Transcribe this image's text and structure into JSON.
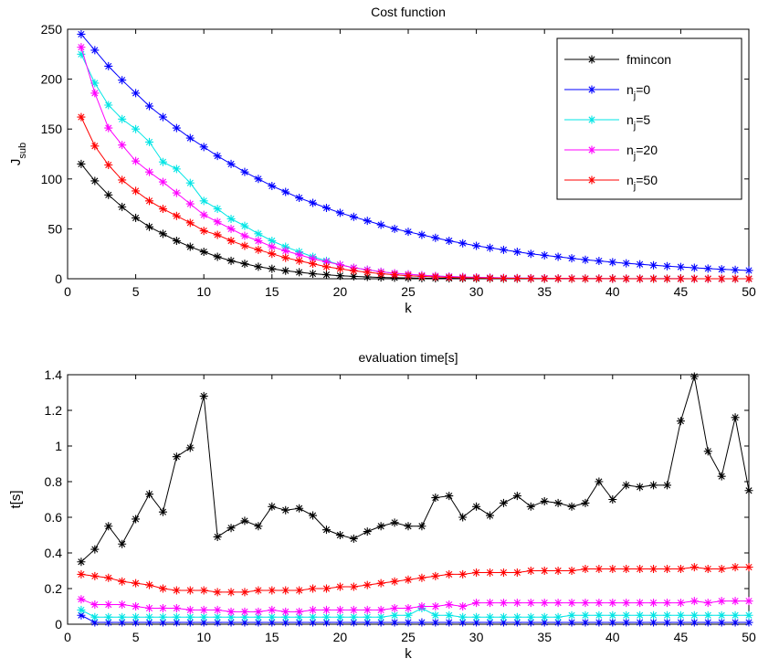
{
  "chart_data": [
    {
      "type": "line",
      "title": "Cost function",
      "xlabel": "k",
      "ylabel": "J",
      "ylabel_sub": "sub",
      "xlim": [
        0,
        50
      ],
      "ylim": [
        0,
        250
      ],
      "xticks": [
        0,
        5,
        10,
        15,
        20,
        25,
        30,
        35,
        40,
        45,
        50
      ],
      "yticks": [
        0,
        50,
        100,
        150,
        200,
        250
      ],
      "legend_position": "top-right",
      "x": [
        1,
        2,
        3,
        4,
        5,
        6,
        7,
        8,
        9,
        10,
        11,
        12,
        13,
        14,
        15,
        16,
        17,
        18,
        19,
        20,
        21,
        22,
        23,
        24,
        25,
        26,
        27,
        28,
        29,
        30,
        31,
        32,
        33,
        34,
        35,
        36,
        37,
        38,
        39,
        40,
        41,
        42,
        43,
        44,
        45,
        46,
        47,
        48,
        49,
        50
      ],
      "series": [
        {
          "name": "fmincon",
          "legend": {
            "base": "fmincon",
            "sub": "",
            "sup": ""
          },
          "color": "#000000",
          "values": [
            115,
            98,
            84,
            72,
            61,
            52,
            45,
            38,
            32,
            27,
            22,
            18,
            15,
            12,
            10,
            8,
            6.5,
            5,
            4,
            3,
            2.4,
            1.8,
            1.3,
            1,
            0.8,
            0.6,
            0.5,
            0.4,
            0.3,
            0.2,
            0.2,
            0.1,
            0.1,
            0.1,
            0.1,
            0.1,
            0,
            0,
            0,
            0,
            0,
            0,
            0,
            0,
            0,
            0,
            0,
            0,
            0,
            0
          ]
        },
        {
          "name": "n_j=0",
          "legend": {
            "base": "n",
            "sub": "j",
            "sup": "=0"
          },
          "color": "#0000ff",
          "values": [
            245,
            229,
            213,
            199,
            186,
            173,
            162,
            151,
            141,
            132,
            123,
            115,
            107,
            100,
            93,
            87,
            81,
            76,
            71,
            66,
            62,
            58,
            54,
            50,
            47,
            44,
            41,
            38,
            35.5,
            33,
            31,
            29,
            27,
            25,
            23.5,
            22,
            20.5,
            19,
            17.8,
            16.6,
            15.5,
            14.5,
            13.5,
            12.6,
            11.8,
            11,
            10.2,
            9.5,
            8.9,
            8.3
          ]
        },
        {
          "name": "n_j=5",
          "legend": {
            "base": "n",
            "sub": "j",
            "sup": "=5"
          },
          "color": "#00e5e5",
          "values": [
            225,
            196,
            174,
            160,
            150,
            137,
            117,
            110,
            96,
            78,
            70,
            60,
            53,
            45,
            38,
            32,
            27,
            22,
            18,
            14,
            11,
            9,
            7,
            5.5,
            4.5,
            3.5,
            2.8,
            2.2,
            1.8,
            1.4,
            1.1,
            0.9,
            0.7,
            0.6,
            0.5,
            0.4,
            0.3,
            0.2,
            0.2,
            0.1,
            0.1,
            0.1,
            0.1,
            0.1,
            0.1,
            0,
            0,
            0,
            0,
            0
          ]
        },
        {
          "name": "n_j=20",
          "legend": {
            "base": "n",
            "sub": "j",
            "sup": "=20"
          },
          "color": "#ff00ff",
          "values": [
            232,
            186,
            151,
            134,
            118,
            107,
            97,
            86,
            75,
            64,
            57,
            50,
            43,
            38,
            32,
            28,
            24,
            20,
            17,
            14,
            11,
            9,
            7,
            5.5,
            4.5,
            3.5,
            2.8,
            2.2,
            1.8,
            1.4,
            1.1,
            0.9,
            0.7,
            0.6,
            0.5,
            0.4,
            0.3,
            0.2,
            0.2,
            0.1,
            0.1,
            0.1,
            0.1,
            0.1,
            0.1,
            0,
            0,
            0,
            0,
            0
          ]
        },
        {
          "name": "n_j=50",
          "legend": {
            "base": "n",
            "sub": "j",
            "sup": "=50"
          },
          "color": "#ff0000",
          "values": [
            162,
            133,
            114,
            99,
            88,
            78,
            70,
            63,
            56,
            48,
            44,
            38,
            33,
            29,
            25,
            21,
            18,
            15,
            12,
            10,
            8,
            6.5,
            5,
            4,
            3,
            2.4,
            1.8,
            1.4,
            1,
            0.8,
            0.6,
            0.5,
            0.4,
            0.3,
            0.2,
            0.2,
            0.1,
            0.1,
            0.1,
            0.1,
            0,
            0,
            0,
            0,
            0,
            0,
            0,
            0,
            0,
            0
          ]
        }
      ]
    },
    {
      "type": "line",
      "title": "evaluation time[s]",
      "xlabel": "k",
      "ylabel": "t[s]",
      "xlim": [
        0,
        50
      ],
      "ylim": [
        0,
        1.4
      ],
      "xticks": [
        0,
        5,
        10,
        15,
        20,
        25,
        30,
        35,
        40,
        45,
        50
      ],
      "yticks": [
        0,
        0.2,
        0.4,
        0.6,
        0.8,
        1,
        1.2,
        1.4
      ],
      "x": [
        1,
        2,
        3,
        4,
        5,
        6,
        7,
        8,
        9,
        10,
        11,
        12,
        13,
        14,
        15,
        16,
        17,
        18,
        19,
        20,
        21,
        22,
        23,
        24,
        25,
        26,
        27,
        28,
        29,
        30,
        31,
        32,
        33,
        34,
        35,
        36,
        37,
        38,
        39,
        40,
        41,
        42,
        43,
        44,
        45,
        46,
        47,
        48,
        49,
        50
      ],
      "series": [
        {
          "name": "fmincon",
          "color": "#000000",
          "values": [
            0.35,
            0.42,
            0.55,
            0.45,
            0.59,
            0.73,
            0.63,
            0.94,
            0.99,
            1.28,
            0.49,
            0.54,
            0.58,
            0.55,
            0.66,
            0.64,
            0.65,
            0.61,
            0.53,
            0.5,
            0.48,
            0.52,
            0.55,
            0.57,
            0.55,
            0.55,
            0.71,
            0.72,
            0.6,
            0.66,
            0.61,
            0.68,
            0.72,
            0.66,
            0.69,
            0.68,
            0.66,
            0.68,
            0.8,
            0.7,
            0.78,
            0.77,
            0.78,
            0.78,
            1.14,
            1.39,
            0.97,
            0.83,
            1.16,
            0.75
          ]
        },
        {
          "name": "n_j=0",
          "color": "#0000ff",
          "values": [
            0.05,
            0.01,
            0.01,
            0.01,
            0.01,
            0.01,
            0.01,
            0.01,
            0.01,
            0.01,
            0.01,
            0.01,
            0.01,
            0.01,
            0.01,
            0.01,
            0.01,
            0.01,
            0.01,
            0.01,
            0.01,
            0.01,
            0.01,
            0.01,
            0.01,
            0.01,
            0.01,
            0.01,
            0.01,
            0.01,
            0.01,
            0.01,
            0.01,
            0.01,
            0.01,
            0.01,
            0.01,
            0.01,
            0.01,
            0.01,
            0.01,
            0.01,
            0.01,
            0.01,
            0.01,
            0.01,
            0.01,
            0.01,
            0.01,
            0.01
          ]
        },
        {
          "name": "n_j=5",
          "color": "#00e5e5",
          "values": [
            0.08,
            0.04,
            0.04,
            0.04,
            0.04,
            0.04,
            0.04,
            0.04,
            0.04,
            0.04,
            0.04,
            0.04,
            0.04,
            0.04,
            0.04,
            0.04,
            0.04,
            0.04,
            0.04,
            0.04,
            0.04,
            0.04,
            0.04,
            0.05,
            0.05,
            0.09,
            0.05,
            0.05,
            0.04,
            0.04,
            0.04,
            0.04,
            0.04,
            0.04,
            0.04,
            0.04,
            0.05,
            0.05,
            0.05,
            0.05,
            0.05,
            0.05,
            0.05,
            0.05,
            0.05,
            0.05,
            0.05,
            0.05,
            0.05,
            0.05
          ]
        },
        {
          "name": "n_j=20",
          "color": "#ff00ff",
          "values": [
            0.14,
            0.11,
            0.11,
            0.11,
            0.1,
            0.09,
            0.09,
            0.09,
            0.08,
            0.08,
            0.08,
            0.07,
            0.07,
            0.07,
            0.08,
            0.07,
            0.07,
            0.08,
            0.08,
            0.08,
            0.08,
            0.08,
            0.08,
            0.09,
            0.09,
            0.1,
            0.1,
            0.11,
            0.1,
            0.12,
            0.12,
            0.12,
            0.12,
            0.12,
            0.12,
            0.12,
            0.12,
            0.12,
            0.12,
            0.12,
            0.12,
            0.12,
            0.12,
            0.12,
            0.12,
            0.13,
            0.12,
            0.13,
            0.13,
            0.13
          ]
        },
        {
          "name": "n_j=50",
          "color": "#ff0000",
          "values": [
            0.28,
            0.27,
            0.26,
            0.24,
            0.23,
            0.22,
            0.2,
            0.19,
            0.19,
            0.19,
            0.18,
            0.18,
            0.18,
            0.19,
            0.19,
            0.19,
            0.19,
            0.2,
            0.2,
            0.21,
            0.21,
            0.22,
            0.23,
            0.24,
            0.25,
            0.26,
            0.27,
            0.28,
            0.28,
            0.29,
            0.29,
            0.29,
            0.29,
            0.3,
            0.3,
            0.3,
            0.3,
            0.31,
            0.31,
            0.31,
            0.31,
            0.31,
            0.31,
            0.31,
            0.31,
            0.32,
            0.31,
            0.31,
            0.32,
            0.32
          ]
        }
      ]
    }
  ]
}
